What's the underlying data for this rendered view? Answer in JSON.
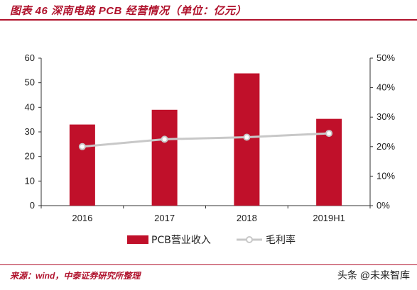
{
  "header": {
    "title": "图表 46  深南电路 PCB 经营情况（单位：亿元）"
  },
  "footer": {
    "source": "来源：wind，中泰证券研究所整理",
    "watermark": "头条 @未来智库"
  },
  "colors": {
    "bar": "#c0102a",
    "line": "#c8c8c8",
    "accent": "#b0122c"
  },
  "chart_data": {
    "type": "bar",
    "categories": [
      "2016",
      "2017",
      "2018",
      "2019H1"
    ],
    "series": [
      {
        "name": "PCB营业收入",
        "type": "bar",
        "axis": "left",
        "values": [
          33.0,
          39.0,
          53.8,
          35.3
        ]
      },
      {
        "name": "毛利率",
        "type": "line",
        "axis": "right",
        "values": [
          0.2,
          0.225,
          0.232,
          0.245
        ]
      }
    ],
    "yleft": {
      "lim": [
        0,
        60
      ],
      "ticks": [
        0,
        10,
        20,
        30,
        40,
        50,
        60
      ]
    },
    "yright": {
      "lim": [
        0,
        0.5
      ],
      "ticks": [
        "0%",
        "10%",
        "20%",
        "30%",
        "40%",
        "50%"
      ]
    },
    "legend": "bottom-center",
    "grid": false
  }
}
